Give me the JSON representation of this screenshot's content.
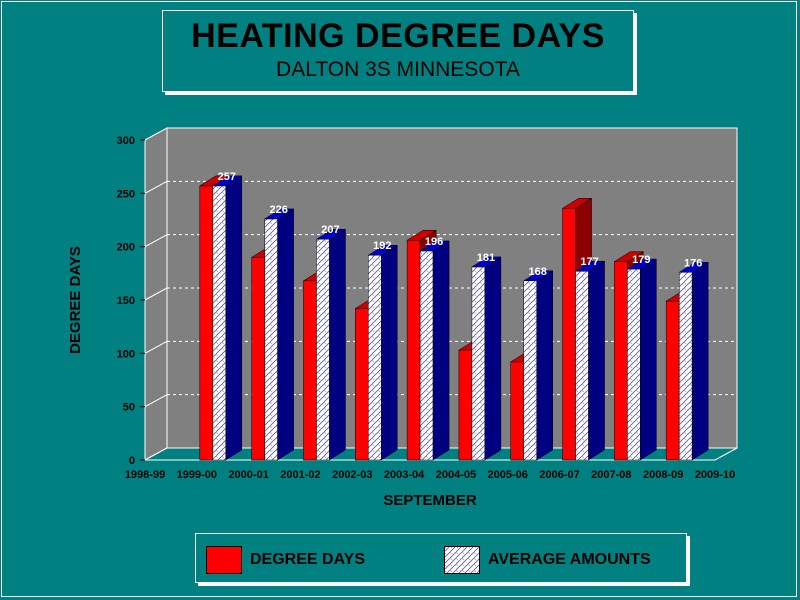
{
  "title": "HEATING DEGREE DAYS",
  "subtitle": "DALTON 3S MINNESOTA",
  "colors": {
    "background": "#008080",
    "plot": "#808080",
    "degree_days": "#ff0000",
    "degree_days_side": "#8b0000",
    "average_side": "#000080",
    "average_top": "#0000cc"
  },
  "chart_data": {
    "type": "bar",
    "title": "HEATING DEGREE DAYS",
    "subtitle": "DALTON 3S MINNESOTA",
    "xlabel": "SEPTEMBER",
    "ylabel": "DEGREE DAYS",
    "ylim": [
      0,
      300
    ],
    "yticks": [
      0,
      50,
      100,
      150,
      200,
      250,
      300
    ],
    "grid": true,
    "legend_position": "bottom",
    "categories": [
      "1998-99",
      "1999-00",
      "2000-01",
      "2001-02",
      "2002-03",
      "2003-04",
      "2004-05",
      "2005-06",
      "2006-07",
      "2007-08",
      "2008-09",
      "2009-10"
    ],
    "series": [
      {
        "name": "DEGREE DAYS",
        "values": [
          null,
          257,
          190,
          168,
          142,
          206,
          103,
          92,
          236,
          186,
          149,
          null
        ]
      },
      {
        "name": "AVERAGE AMOUNTS",
        "values": [
          null,
          257,
          226,
          207,
          192,
          196,
          181,
          168,
          177,
          179,
          176,
          null
        ]
      }
    ],
    "data_labels": [
      null,
      "257",
      "226",
      "207",
      "192",
      "196",
      "181",
      "168",
      "177",
      "179",
      "176",
      null
    ]
  },
  "legend": {
    "degree_days_label": "DEGREE DAYS",
    "average_label": "AVERAGE AMOUNTS"
  }
}
